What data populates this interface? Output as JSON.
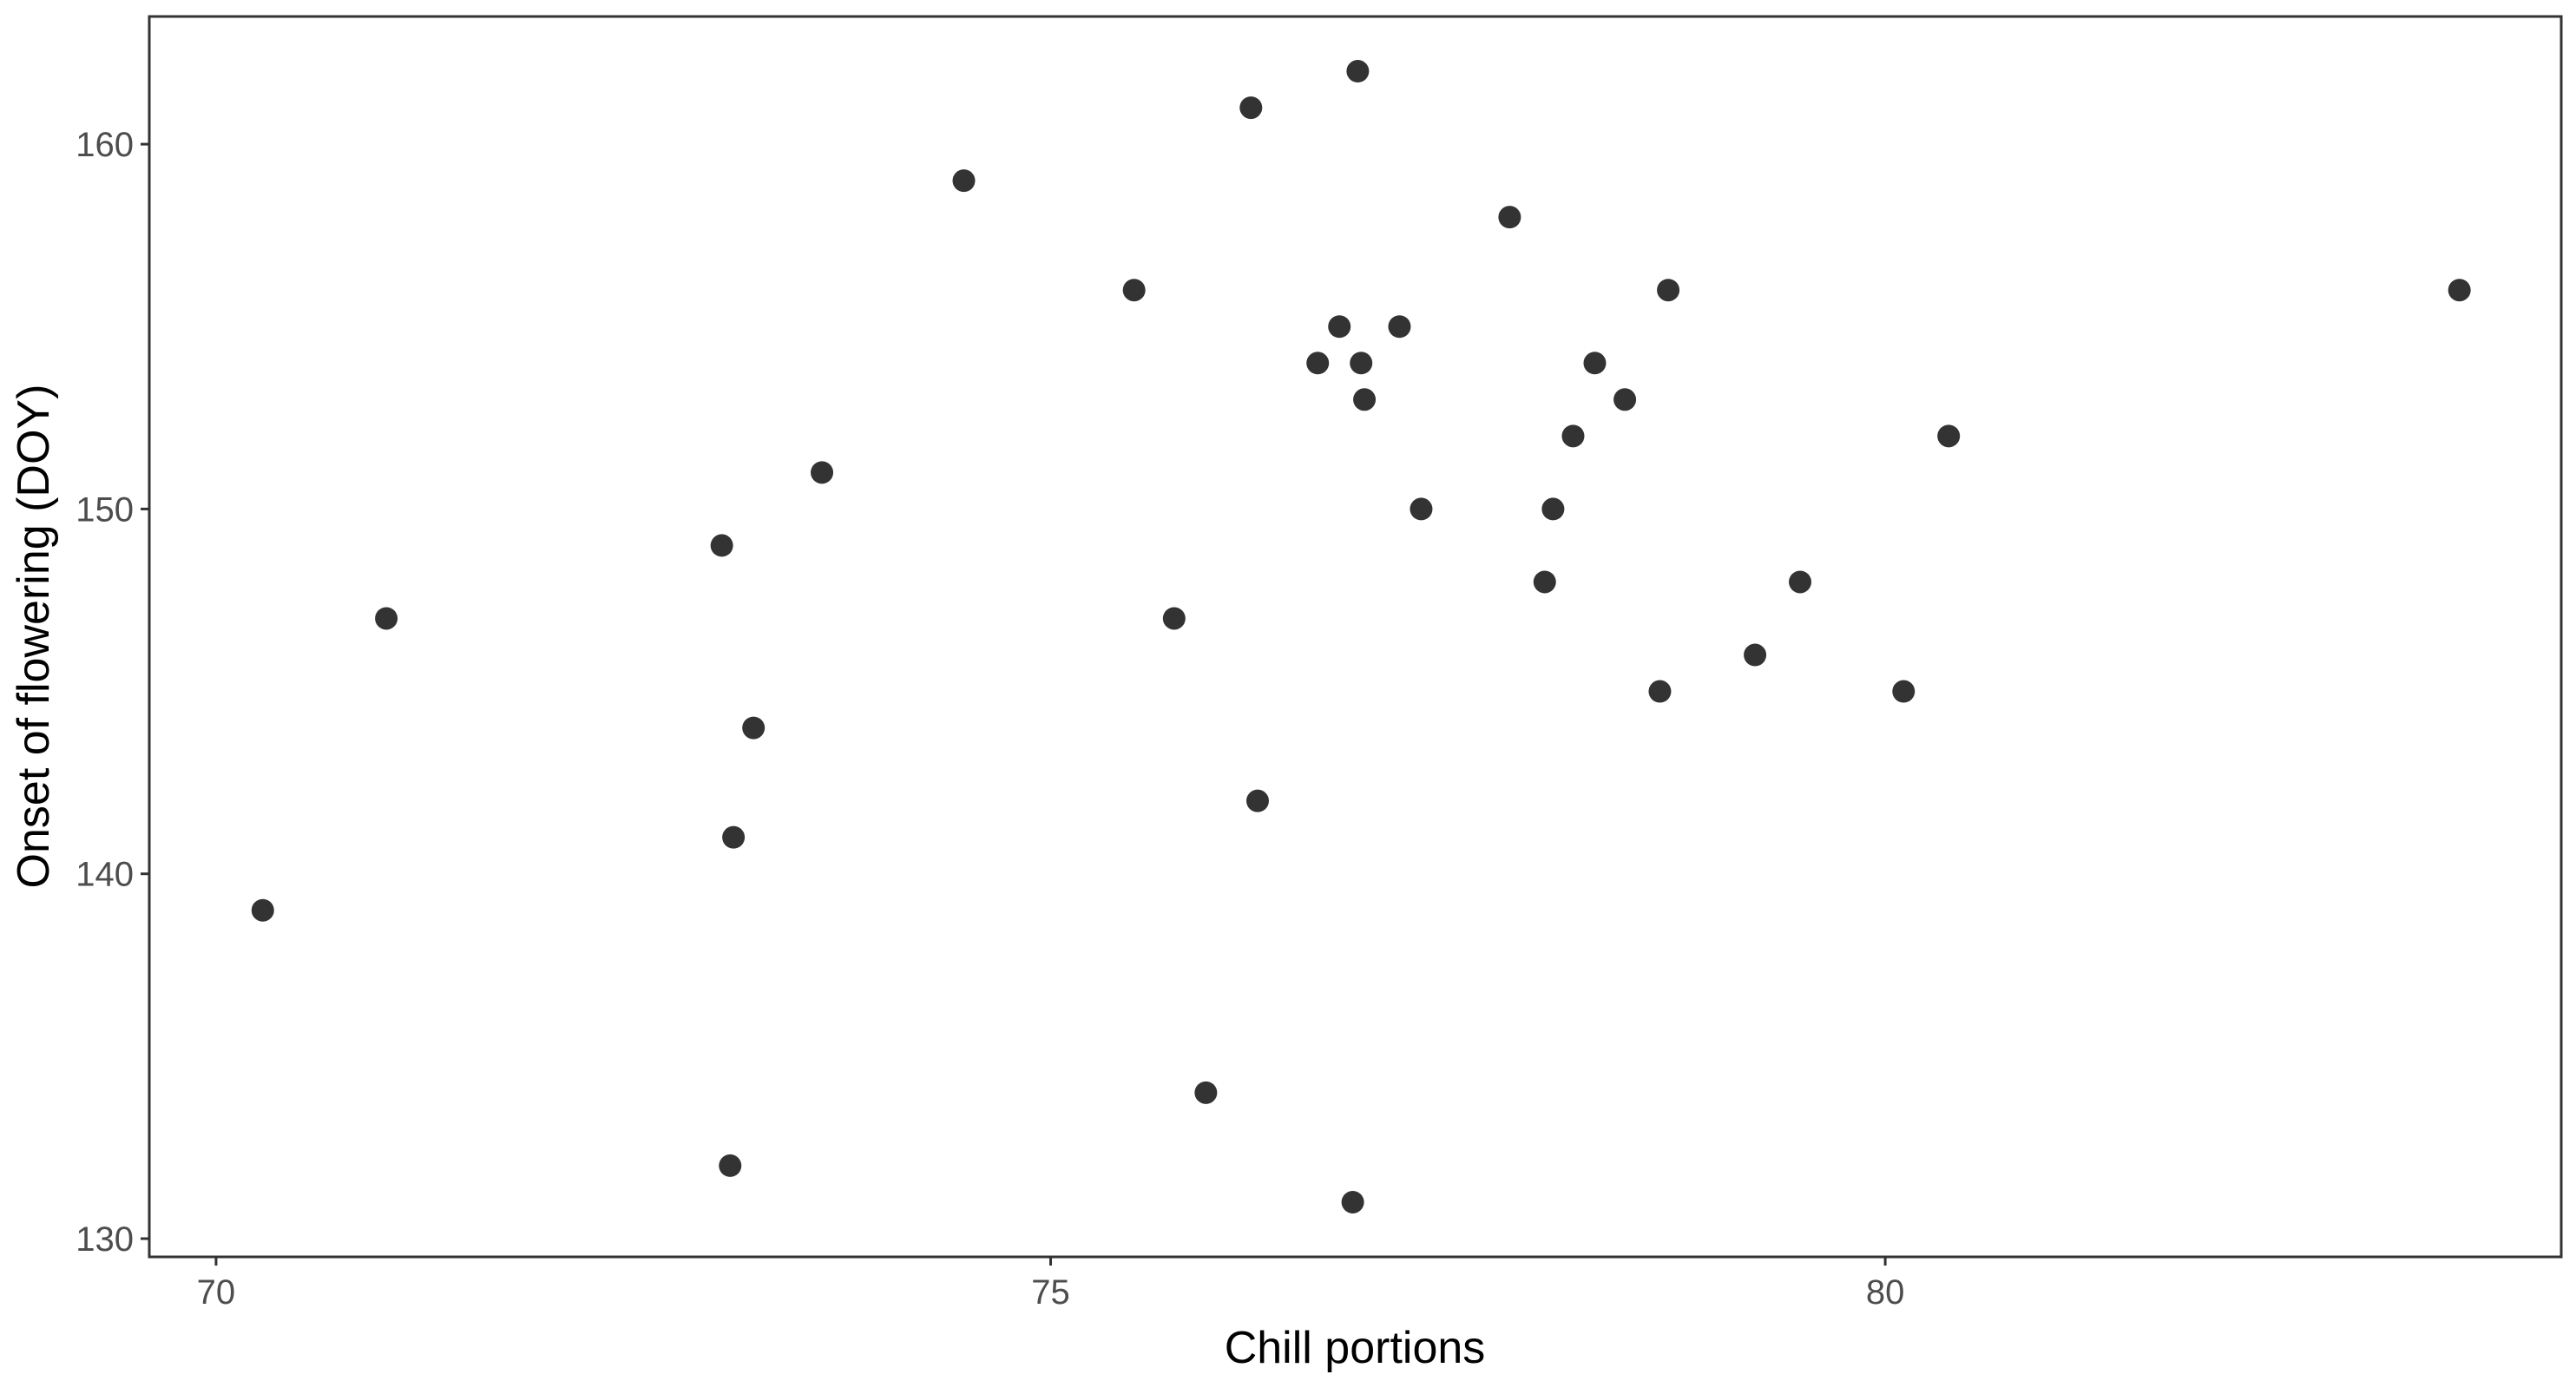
{
  "chart_data": {
    "type": "scatter",
    "title": "",
    "xlabel": "Chill portions",
    "ylabel": "Onset of flowering (DOY)",
    "xlim": [
      69.6,
      84.05
    ],
    "ylim": [
      129.5,
      163.5
    ],
    "x_ticks": [
      70,
      75,
      80
    ],
    "y_ticks": [
      130,
      140,
      150,
      160
    ],
    "x_tick_labels": [
      "70",
      "75",
      "80"
    ],
    "y_tick_labels": [
      "130",
      "140",
      "150",
      "160"
    ],
    "grid": false,
    "legend": "none",
    "point_color": "#333333",
    "points": [
      {
        "x": 70.28,
        "y": 139
      },
      {
        "x": 71.02,
        "y": 147
      },
      {
        "x": 73.03,
        "y": 149
      },
      {
        "x": 73.1,
        "y": 141
      },
      {
        "x": 73.08,
        "y": 132
      },
      {
        "x": 73.22,
        "y": 144
      },
      {
        "x": 73.63,
        "y": 151
      },
      {
        "x": 74.48,
        "y": 159
      },
      {
        "x": 75.5,
        "y": 156
      },
      {
        "x": 75.74,
        "y": 147
      },
      {
        "x": 75.93,
        "y": 134
      },
      {
        "x": 76.2,
        "y": 161
      },
      {
        "x": 76.24,
        "y": 142
      },
      {
        "x": 76.6,
        "y": 154
      },
      {
        "x": 76.73,
        "y": 155
      },
      {
        "x": 76.84,
        "y": 162
      },
      {
        "x": 76.86,
        "y": 154
      },
      {
        "x": 76.88,
        "y": 153
      },
      {
        "x": 76.81,
        "y": 131
      },
      {
        "x": 77.09,
        "y": 155
      },
      {
        "x": 77.22,
        "y": 150
      },
      {
        "x": 77.75,
        "y": 158
      },
      {
        "x": 77.96,
        "y": 148
      },
      {
        "x": 78.01,
        "y": 150
      },
      {
        "x": 78.13,
        "y": 152
      },
      {
        "x": 78.26,
        "y": 154
      },
      {
        "x": 78.44,
        "y": 153
      },
      {
        "x": 78.65,
        "y": 145
      },
      {
        "x": 78.7,
        "y": 156
      },
      {
        "x": 79.22,
        "y": 146
      },
      {
        "x": 79.49,
        "y": 148
      },
      {
        "x": 80.11,
        "y": 145
      },
      {
        "x": 80.38,
        "y": 152
      },
      {
        "x": 83.44,
        "y": 156
      }
    ]
  }
}
